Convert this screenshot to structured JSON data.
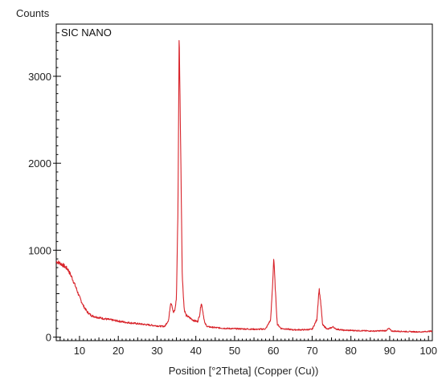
{
  "chart_data": {
    "type": "line",
    "ylabel": "Counts",
    "xlabel": "Position [°2Theta] (Copper (Cu))",
    "annotation": "SIC NANO",
    "xlim": [
      4,
      101
    ],
    "ylim": [
      -40,
      3600
    ],
    "x_ticks": [
      10,
      20,
      30,
      40,
      50,
      60,
      70,
      80,
      90,
      100
    ],
    "y_ticks": [
      0,
      1000,
      2000,
      3000
    ],
    "series_color": "#d8232a",
    "grid": false,
    "series": [
      {
        "points": [
          [
            4,
            870
          ],
          [
            5,
            850
          ],
          [
            6,
            820
          ],
          [
            7,
            780
          ],
          [
            8,
            690
          ],
          [
            9,
            580
          ],
          [
            10,
            460
          ],
          [
            11,
            360
          ],
          [
            12,
            290
          ],
          [
            13,
            250
          ],
          [
            14,
            235
          ],
          [
            15,
            225
          ],
          [
            16,
            215
          ],
          [
            18,
            200
          ],
          [
            20,
            185
          ],
          [
            22,
            170
          ],
          [
            24,
            160
          ],
          [
            26,
            150
          ],
          [
            28,
            140
          ],
          [
            30,
            130
          ],
          [
            31,
            125
          ],
          [
            32,
            125
          ],
          [
            33,
            200
          ],
          [
            33.5,
            400
          ],
          [
            33.8,
            380
          ],
          [
            34.2,
            280
          ],
          [
            34.6,
            310
          ],
          [
            35.0,
            450
          ],
          [
            35.4,
            1500
          ],
          [
            35.7,
            3520
          ],
          [
            35.85,
            3000
          ],
          [
            36.0,
            2500
          ],
          [
            36.2,
            1800
          ],
          [
            36.5,
            700
          ],
          [
            37,
            320
          ],
          [
            37.5,
            250
          ],
          [
            38.5,
            220
          ],
          [
            39.5,
            190
          ],
          [
            40.5,
            180
          ],
          [
            41.0,
            260
          ],
          [
            41.4,
            400
          ],
          [
            41.8,
            300
          ],
          [
            42.3,
            160
          ],
          [
            43,
            120
          ],
          [
            45,
            110
          ],
          [
            48,
            100
          ],
          [
            52,
            95
          ],
          [
            56,
            90
          ],
          [
            58,
            95
          ],
          [
            59.3,
            200
          ],
          [
            59.8,
            600
          ],
          [
            60.1,
            920
          ],
          [
            60.5,
            550
          ],
          [
            61.0,
            150
          ],
          [
            62,
            100
          ],
          [
            65,
            85
          ],
          [
            68,
            85
          ],
          [
            70,
            90
          ],
          [
            71.2,
            200
          ],
          [
            71.8,
            560
          ],
          [
            72.2,
            400
          ],
          [
            72.7,
            140
          ],
          [
            74,
            90
          ],
          [
            75.5,
            120
          ],
          [
            76,
            95
          ],
          [
            78,
            80
          ],
          [
            82,
            75
          ],
          [
            86,
            70
          ],
          [
            89,
            75
          ],
          [
            89.8,
            100
          ],
          [
            90.5,
            70
          ],
          [
            94,
            65
          ],
          [
            98,
            60
          ],
          [
            101,
            70
          ]
        ]
      }
    ]
  }
}
